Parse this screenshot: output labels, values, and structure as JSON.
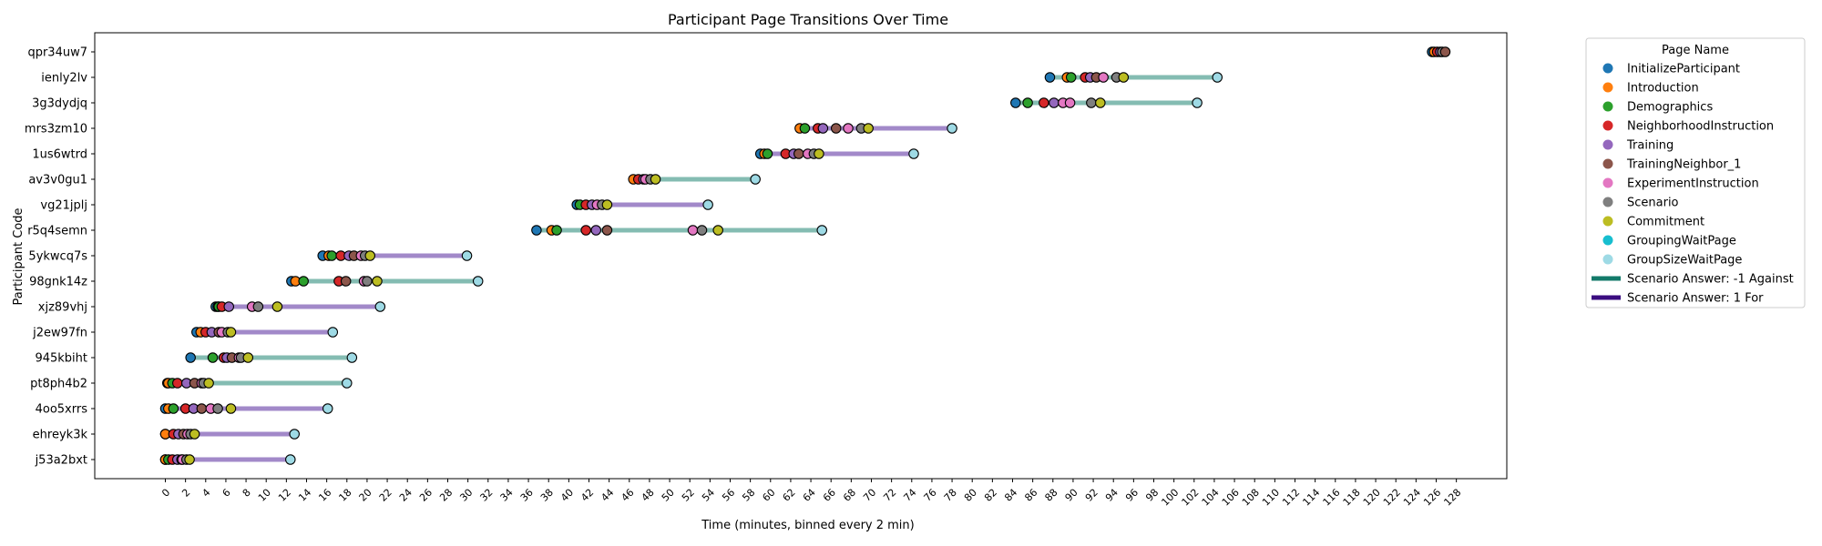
{
  "chart_data": {
    "type": "scatter",
    "title": "Participant Page Transitions Over Time",
    "xlabel": "Time (minutes, binned every 2 min)",
    "ylabel": "Participant Code",
    "xlim": [
      -7,
      133
    ],
    "xticks": [
      0,
      2,
      4,
      6,
      8,
      10,
      12,
      14,
      16,
      18,
      20,
      22,
      24,
      26,
      28,
      30,
      32,
      34,
      36,
      38,
      40,
      42,
      44,
      46,
      48,
      50,
      52,
      54,
      56,
      58,
      60,
      62,
      64,
      66,
      68,
      70,
      72,
      74,
      76,
      78,
      80,
      82,
      84,
      86,
      88,
      90,
      92,
      94,
      96,
      98,
      100,
      102,
      104,
      106,
      108,
      110,
      112,
      114,
      116,
      118,
      120,
      122,
      124,
      126,
      128
    ],
    "grid": false,
    "legend_position": "outside-right",
    "legend_title": "Page Name",
    "pages": [
      {
        "name": "InitializeParticipant",
        "color": "#1f77b4"
      },
      {
        "name": "Introduction",
        "color": "#ff7f0e"
      },
      {
        "name": "Demographics",
        "color": "#2ca02c"
      },
      {
        "name": "NeighborhoodInstruction",
        "color": "#d62728"
      },
      {
        "name": "Training",
        "color": "#9467bd"
      },
      {
        "name": "TrainingNeighbor_1",
        "color": "#8c564b"
      },
      {
        "name": "ExperimentInstruction",
        "color": "#e377c2"
      },
      {
        "name": "Scenario",
        "color": "#7f7f7f"
      },
      {
        "name": "Commitment",
        "color": "#bcbd22"
      },
      {
        "name": "GroupingWaitPage",
        "color": "#17becf"
      },
      {
        "name": "GroupSizeWaitPage",
        "color": "#9edae5"
      }
    ],
    "answers": [
      {
        "name": "Scenario Answer: -1 Against",
        "color": "#137a6a"
      },
      {
        "name": "Scenario Answer: 1 For",
        "color": "#3b0d80"
      }
    ],
    "line_colors": {
      "-1": "#84bcb2",
      "1": "#a289c9"
    },
    "participants": [
      {
        "code": "j53a2bxt",
        "answer": 1,
        "points": [
          [
            0,
            0
          ],
          [
            0,
            1
          ],
          [
            0.3,
            2
          ],
          [
            0.7,
            3
          ],
          [
            1.2,
            4
          ],
          [
            1.6,
            5
          ],
          [
            1.7,
            6
          ],
          [
            2.1,
            7
          ],
          [
            2.4,
            8
          ],
          [
            12.4,
            10
          ]
        ]
      },
      {
        "code": "ehreyk3k",
        "answer": 1,
        "points": [
          [
            0,
            0
          ],
          [
            0,
            1
          ],
          [
            0.8,
            3
          ],
          [
            1.3,
            4
          ],
          [
            1.8,
            5
          ],
          [
            2.2,
            6
          ],
          [
            2.5,
            7
          ],
          [
            2.9,
            8
          ],
          [
            12.8,
            10
          ]
        ]
      },
      {
        "code": "4oo5xrrs",
        "answer": 1,
        "points": [
          [
            0,
            0
          ],
          [
            0.3,
            1
          ],
          [
            0.8,
            2
          ],
          [
            2.0,
            3
          ],
          [
            2.8,
            4
          ],
          [
            3.6,
            5
          ],
          [
            4.5,
            6
          ],
          [
            5.2,
            7
          ],
          [
            6.5,
            8
          ],
          [
            16.1,
            10
          ]
        ]
      },
      {
        "code": "pt8ph4b2",
        "answer": -1,
        "points": [
          [
            0.2,
            0
          ],
          [
            0.3,
            1
          ],
          [
            0.7,
            2
          ],
          [
            1.2,
            3
          ],
          [
            2.1,
            4
          ],
          [
            2.9,
            5
          ],
          [
            3.6,
            6
          ],
          [
            3.8,
            7
          ],
          [
            4.3,
            8
          ],
          [
            18.0,
            10
          ]
        ]
      },
      {
        "code": "945kbiht",
        "answer": -1,
        "points": [
          [
            2.5,
            0
          ],
          [
            4.7,
            2
          ],
          [
            5.8,
            3
          ],
          [
            6.1,
            4
          ],
          [
            6.6,
            5
          ],
          [
            7.3,
            6
          ],
          [
            7.5,
            7
          ],
          [
            8.2,
            8
          ],
          [
            18.5,
            10
          ]
        ]
      },
      {
        "code": "j2ew97fn",
        "answer": 1,
        "points": [
          [
            3.1,
            0
          ],
          [
            3.5,
            1
          ],
          [
            4.0,
            3
          ],
          [
            4.6,
            4
          ],
          [
            5.3,
            5
          ],
          [
            5.6,
            6
          ],
          [
            6.2,
            7
          ],
          [
            6.5,
            8
          ],
          [
            16.6,
            10
          ]
        ]
      },
      {
        "code": "xjz89vhj",
        "answer": 1,
        "points": [
          [
            5.0,
            0
          ],
          [
            5.2,
            1
          ],
          [
            5.3,
            2
          ],
          [
            5.6,
            3
          ],
          [
            6.3,
            4
          ],
          [
            8.6,
            6
          ],
          [
            9.2,
            7
          ],
          [
            11.1,
            8
          ],
          [
            21.3,
            10
          ]
        ]
      },
      {
        "code": "98gnk14z",
        "answer": -1,
        "points": [
          [
            12.5,
            0
          ],
          [
            12.9,
            1
          ],
          [
            13.7,
            2
          ],
          [
            17.2,
            3
          ],
          [
            17.9,
            5
          ],
          [
            19.7,
            6
          ],
          [
            20.0,
            7
          ],
          [
            21.0,
            8
          ],
          [
            31.0,
            10
          ]
        ]
      },
      {
        "code": "5ykwcq7s",
        "answer": 1,
        "points": [
          [
            15.6,
            0
          ],
          [
            16.2,
            1
          ],
          [
            16.5,
            2
          ],
          [
            17.4,
            3
          ],
          [
            18.2,
            4
          ],
          [
            18.7,
            5
          ],
          [
            19.4,
            6
          ],
          [
            19.8,
            7
          ],
          [
            20.3,
            8
          ],
          [
            29.9,
            10
          ]
        ]
      },
      {
        "code": "r5q4semn",
        "answer": -1,
        "points": [
          [
            36.8,
            0
          ],
          [
            38.3,
            1
          ],
          [
            38.8,
            2
          ],
          [
            41.7,
            3
          ],
          [
            42.7,
            4
          ],
          [
            43.8,
            5
          ],
          [
            52.3,
            6
          ],
          [
            53.2,
            7
          ],
          [
            54.8,
            8
          ],
          [
            65.1,
            10
          ]
        ]
      },
      {
        "code": "vg21jplj",
        "answer": 1,
        "points": [
          [
            40.8,
            0
          ],
          [
            41.1,
            2
          ],
          [
            41.7,
            3
          ],
          [
            42.3,
            4
          ],
          [
            42.8,
            6
          ],
          [
            43.3,
            7
          ],
          [
            43.8,
            8
          ],
          [
            53.8,
            10
          ]
        ]
      },
      {
        "code": "av3v0gu1",
        "answer": -1,
        "points": [
          [
            46.4,
            1
          ],
          [
            46.9,
            3
          ],
          [
            47.4,
            4
          ],
          [
            47.6,
            6
          ],
          [
            48.1,
            7
          ],
          [
            48.6,
            8
          ],
          [
            58.5,
            10
          ]
        ]
      },
      {
        "code": "1us6wtrd",
        "answer": 1,
        "points": [
          [
            59.0,
            0
          ],
          [
            59.4,
            1
          ],
          [
            59.7,
            2
          ],
          [
            61.5,
            3
          ],
          [
            62.3,
            4
          ],
          [
            62.8,
            5
          ],
          [
            63.7,
            6
          ],
          [
            64.3,
            7
          ],
          [
            64.8,
            8
          ],
          [
            74.2,
            10
          ]
        ]
      },
      {
        "code": "mrs3zm10",
        "answer": 1,
        "points": [
          [
            62.9,
            1
          ],
          [
            63.4,
            2
          ],
          [
            64.7,
            3
          ],
          [
            65.2,
            4
          ],
          [
            66.5,
            5
          ],
          [
            67.7,
            6
          ],
          [
            69.0,
            7
          ],
          [
            69.7,
            8
          ],
          [
            78.0,
            10
          ]
        ]
      },
      {
        "code": "3g3dydjq",
        "answer": -1,
        "points": [
          [
            84.3,
            0
          ],
          [
            85.5,
            2
          ],
          [
            87.1,
            3
          ],
          [
            88.1,
            4
          ],
          [
            89.0,
            6
          ],
          [
            89.7,
            6
          ],
          [
            91.8,
            7
          ],
          [
            92.7,
            8
          ],
          [
            102.3,
            10
          ]
        ]
      },
      {
        "code": "ienly2lv",
        "answer": -1,
        "points": [
          [
            87.7,
            0
          ],
          [
            89.4,
            1
          ],
          [
            89.8,
            2
          ],
          [
            91.2,
            3
          ],
          [
            91.7,
            4
          ],
          [
            92.3,
            5
          ],
          [
            93.0,
            6
          ],
          [
            94.3,
            7
          ],
          [
            95.0,
            8
          ],
          [
            104.3,
            10
          ]
        ]
      },
      {
        "code": "qpr34uw7",
        "answer": -1,
        "points": [
          [
            125.6,
            0
          ],
          [
            125.8,
            1
          ],
          [
            126.1,
            3
          ],
          [
            126.4,
            4
          ],
          [
            126.6,
            7
          ],
          [
            126.9,
            5
          ]
        ]
      }
    ]
  }
}
